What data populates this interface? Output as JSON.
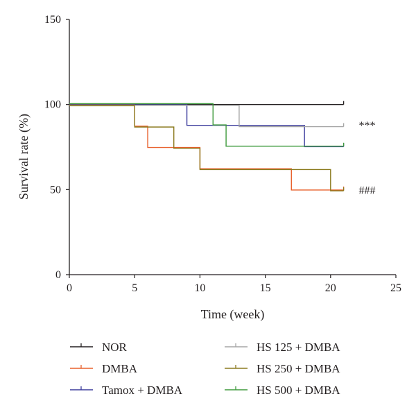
{
  "chart_data": {
    "type": "line",
    "step": true,
    "xlabel": "Time (week)",
    "ylabel": "Survival rate (%)",
    "xlim": [
      0,
      25
    ],
    "ylim": [
      0,
      150
    ],
    "xticks": [
      0,
      5,
      10,
      15,
      20,
      25
    ],
    "yticks": [
      0,
      50,
      100,
      150
    ],
    "grid": false,
    "legend_position": "bottom",
    "series": [
      {
        "name": "NOR",
        "color": "#231f20",
        "points": [
          [
            0,
            100
          ],
          [
            21,
            100
          ]
        ]
      },
      {
        "name": "DMBA",
        "color": "#e8602c",
        "points": [
          [
            0,
            100
          ],
          [
            5,
            87.5
          ],
          [
            6,
            75
          ],
          [
            10,
            62.5
          ],
          [
            17,
            50
          ],
          [
            21,
            50
          ]
        ]
      },
      {
        "name": "Tamox + DMBA",
        "color": "#3b3b9c",
        "points": [
          [
            0,
            100
          ],
          [
            9,
            87.5
          ],
          [
            13,
            87.5
          ],
          [
            18,
            75
          ],
          [
            21,
            75
          ]
        ]
      },
      {
        "name": "HS 125 + DMBA",
        "color": "#a6a6a6",
        "points": [
          [
            0,
            100
          ],
          [
            13,
            87.5
          ],
          [
            21,
            87.5
          ]
        ]
      },
      {
        "name": "HS 250 + DMBA",
        "color": "#8b7a1e",
        "points": [
          [
            0,
            100
          ],
          [
            5,
            87.5
          ],
          [
            8,
            75
          ],
          [
            10,
            62.5
          ],
          [
            20,
            50
          ],
          [
            21,
            50
          ]
        ]
      },
      {
        "name": "HS 500 + DMBA",
        "color": "#3e9a3c",
        "points": [
          [
            0,
            100
          ],
          [
            11,
            87.5
          ],
          [
            12,
            75
          ],
          [
            21,
            75
          ]
        ]
      }
    ],
    "annotations": [
      {
        "text": "***",
        "x": 22,
        "y": 88
      },
      {
        "text": "###",
        "x": 22,
        "y": 50
      }
    ]
  }
}
